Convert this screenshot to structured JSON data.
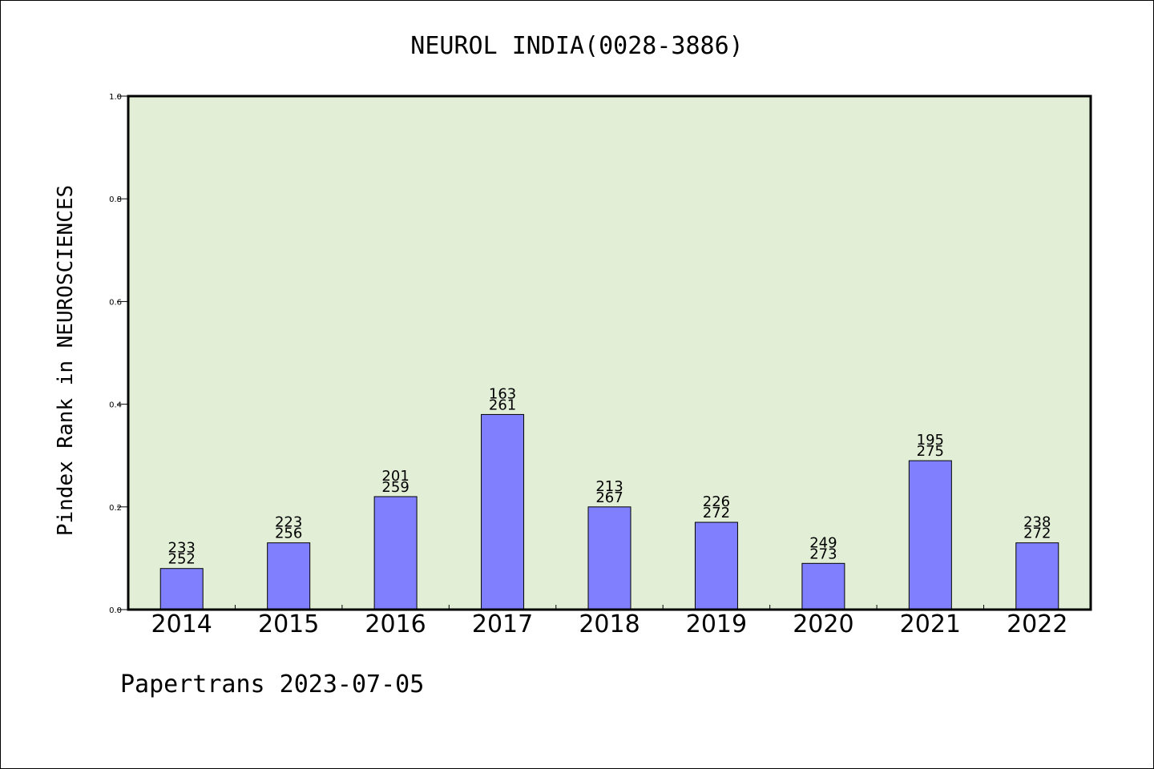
{
  "chart_data": {
    "type": "bar",
    "title": "NEUROL INDIA(0028-3886)",
    "xlabel": "",
    "ylabel": "Pindex Rank in NEUROSCIENCES",
    "ylim": [
      0.0,
      1.0
    ],
    "yticks": [
      "0.0",
      "0.2",
      "0.4",
      "0.6",
      "0.8",
      "1.0"
    ],
    "categories": [
      "2014",
      "2015",
      "2016",
      "2017",
      "2018",
      "2019",
      "2020",
      "2021",
      "2022"
    ],
    "values": [
      0.08,
      0.13,
      0.22,
      0.38,
      0.2,
      0.17,
      0.09,
      0.29,
      0.13
    ],
    "labels_top": [
      "233",
      "223",
      "201",
      "163",
      "213",
      "226",
      "249",
      "195",
      "238"
    ],
    "labels_bottom": [
      "252",
      "256",
      "259",
      "261",
      "267",
      "272",
      "273",
      "275",
      "272"
    ],
    "grid": false,
    "bar_color": "#8080ff",
    "plot_background": "#e2efd6"
  },
  "footer": "Papertrans 2023-07-05"
}
